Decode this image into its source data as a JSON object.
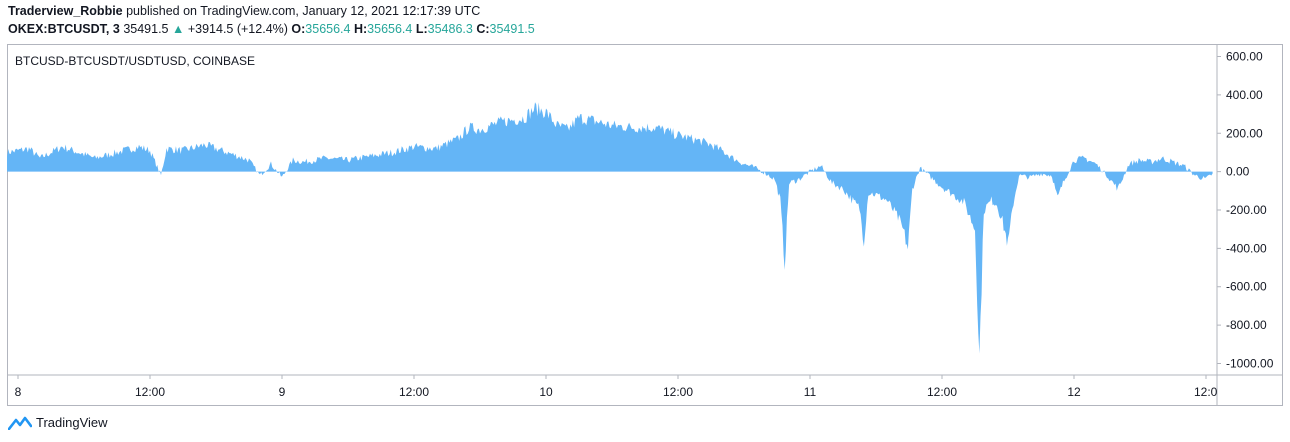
{
  "header": {
    "author": "Traderview_Robbie",
    "published_text": "published on TradingView.com, January 12, 2021 12:17:39 UTC"
  },
  "symbol_bar": {
    "symbol": "OKEX:BTCUSDT, 3",
    "price": "35491.5",
    "arrow": "▲",
    "change": "+3914.5 (+12.4%)",
    "o_label": "O:",
    "o_value": "35656.4",
    "h_label": "H:",
    "h_value": "35656.4",
    "l_label": "L:",
    "l_value": "35486.3",
    "c_label": "C:",
    "c_value": "35491.5"
  },
  "footer": {
    "brand": "TradingView",
    "brand_icon": "tradingview-logo-icon"
  },
  "colors": {
    "area": "#64b5f6",
    "text": "#131722",
    "up": "#26a69a",
    "border": "#b2b5be"
  },
  "chart_data": {
    "type": "area",
    "series_label": "BTCUSD-BTCUSDT/USDTUSD, COINBASE",
    "x_ticks": [
      "8",
      "12:00",
      "9",
      "12:00",
      "10",
      "12:00",
      "11",
      "12:00",
      "12",
      "12:0"
    ],
    "x_tick_positions_hours": [
      0,
      12,
      24,
      36,
      48,
      60,
      72,
      84,
      96,
      108
    ],
    "x_range_hours": [
      -1,
      109
    ],
    "y_ticks": [
      "600.00",
      "400.00",
      "200.00",
      "0.00",
      "-200.00",
      "-400.00",
      "-600.00",
      "-800.00",
      "-1000.00"
    ],
    "ylim": [
      -1060,
      660
    ],
    "baseline": 0,
    "keypoints": [
      [
        -1,
        100
      ],
      [
        1,
        120
      ],
      [
        2,
        70
      ],
      [
        4,
        130
      ],
      [
        6,
        90
      ],
      [
        7,
        70
      ],
      [
        9,
        100
      ],
      [
        11,
        130
      ],
      [
        12,
        110
      ],
      [
        13,
        -20
      ],
      [
        13.5,
        120
      ],
      [
        15,
        110
      ],
      [
        17,
        140
      ],
      [
        19,
        100
      ],
      [
        20,
        80
      ],
      [
        21,
        60
      ],
      [
        22,
        -20
      ],
      [
        23,
        40
      ],
      [
        24,
        -30
      ],
      [
        25,
        60
      ],
      [
        26,
        50
      ],
      [
        28,
        70
      ],
      [
        30,
        60
      ],
      [
        32,
        80
      ],
      [
        34,
        100
      ],
      [
        36,
        130
      ],
      [
        38,
        120
      ],
      [
        40,
        170
      ],
      [
        41,
        230
      ],
      [
        42,
        220
      ],
      [
        44,
        260
      ],
      [
        46,
        280
      ],
      [
        47,
        330
      ],
      [
        48,
        310
      ],
      [
        49,
        240
      ],
      [
        50,
        220
      ],
      [
        51,
        280
      ],
      [
        52,
        270
      ],
      [
        54,
        240
      ],
      [
        56,
        230
      ],
      [
        58,
        230
      ],
      [
        60,
        190
      ],
      [
        62,
        160
      ],
      [
        63,
        140
      ],
      [
        64,
        110
      ],
      [
        65,
        70
      ],
      [
        66,
        40
      ],
      [
        67,
        20
      ],
      [
        68,
        -10
      ],
      [
        68.8,
        -40
      ],
      [
        69.3,
        -150
      ],
      [
        69.7,
        -480
      ],
      [
        70.1,
        -60
      ],
      [
        71,
        -40
      ],
      [
        72,
        0
      ],
      [
        73,
        30
      ],
      [
        74,
        -60
      ],
      [
        75,
        -90
      ],
      [
        76,
        -160
      ],
      [
        76.5,
        -190
      ],
      [
        76.9,
        -360
      ],
      [
        77.3,
        -110
      ],
      [
        78,
        -120
      ],
      [
        79,
        -150
      ],
      [
        80,
        -240
      ],
      [
        80.5,
        -310
      ],
      [
        80.9,
        -400
      ],
      [
        81.3,
        -90
      ],
      [
        82,
        20
      ],
      [
        83,
        -30
      ],
      [
        84,
        -80
      ],
      [
        85,
        -120
      ],
      [
        86,
        -160
      ],
      [
        87,
        -300
      ],
      [
        87.4,
        -970
      ],
      [
        87.8,
        -200
      ],
      [
        88.5,
        -150
      ],
      [
        89,
        -170
      ],
      [
        89.5,
        -260
      ],
      [
        90,
        -380
      ],
      [
        90.5,
        -160
      ],
      [
        91,
        -20
      ],
      [
        92,
        -30
      ],
      [
        93,
        -10
      ],
      [
        94,
        -20
      ],
      [
        94.5,
        -140
      ],
      [
        95,
        -60
      ],
      [
        96,
        60
      ],
      [
        97,
        70
      ],
      [
        98,
        40
      ],
      [
        99,
        -20
      ],
      [
        100,
        -90
      ],
      [
        101,
        40
      ],
      [
        102,
        60
      ],
      [
        103,
        50
      ],
      [
        104,
        70
      ],
      [
        105,
        50
      ],
      [
        106,
        30
      ],
      [
        107,
        -20
      ],
      [
        108,
        -40
      ],
      [
        108.6,
        -10
      ]
    ]
  }
}
